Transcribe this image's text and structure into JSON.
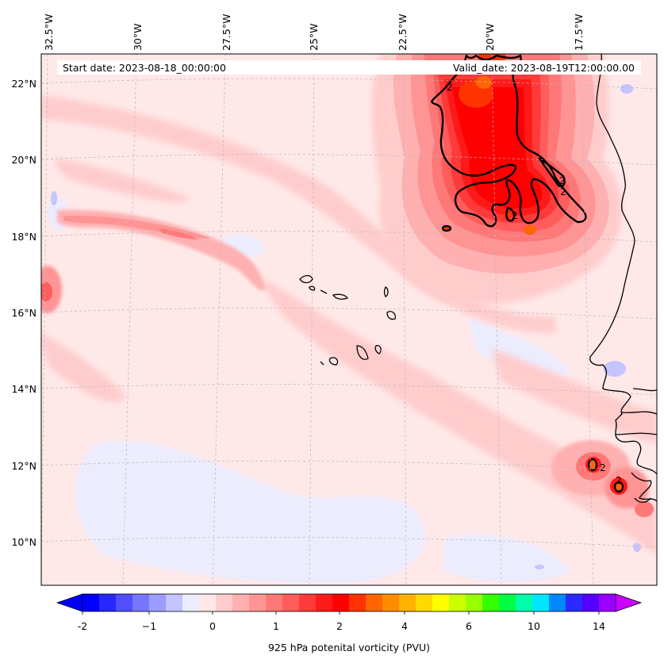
{
  "map": {
    "header_left": "Start date: 2023-08-18_00:00:00",
    "header_right": "Valid_date: 2023-08-19T12:00:00.00",
    "lon_labels": [
      "32.5°W",
      "30°W",
      "27.5°W",
      "25°W",
      "22.5°W",
      "20°W",
      "17.5°W"
    ],
    "lat_labels": [
      "22°N",
      "20°N",
      "18°N",
      "16°N",
      "14°N",
      "12°N",
      "10°N"
    ],
    "contour_label": "2",
    "extent": {
      "lon_min": -33.0,
      "lon_max": -15.5,
      "lat_min": 9.0,
      "lat_max": 22.8
    }
  },
  "colorbar": {
    "label": "925 hPa potenital vorticity (PVU)",
    "ticks": [
      "-2",
      "−1",
      "0",
      "1",
      "2",
      "4",
      "6",
      "10",
      "14"
    ],
    "colors": [
      "#0000ff",
      "#2727ff",
      "#4f4fff",
      "#7676ff",
      "#9d9dff",
      "#c4c4ff",
      "#ececff",
      "#ffe8e8",
      "#ffcccc",
      "#ffb0b0",
      "#ff9494",
      "#ff7878",
      "#ff5c5c",
      "#ff3a3a",
      "#ff1a1a",
      "#ff0000",
      "#ff3300",
      "#ff6600",
      "#ff8c00",
      "#ffb300",
      "#ffd900",
      "#ffff00",
      "#ccff00",
      "#99ff00",
      "#33ff00",
      "#00ff44",
      "#00ffaa",
      "#00e5ff",
      "#0088ff",
      "#2a2aff",
      "#5500ff",
      "#9900ff"
    ],
    "extend_low_color": "#0000ff",
    "extend_high_color": "#cc00ff"
  }
}
